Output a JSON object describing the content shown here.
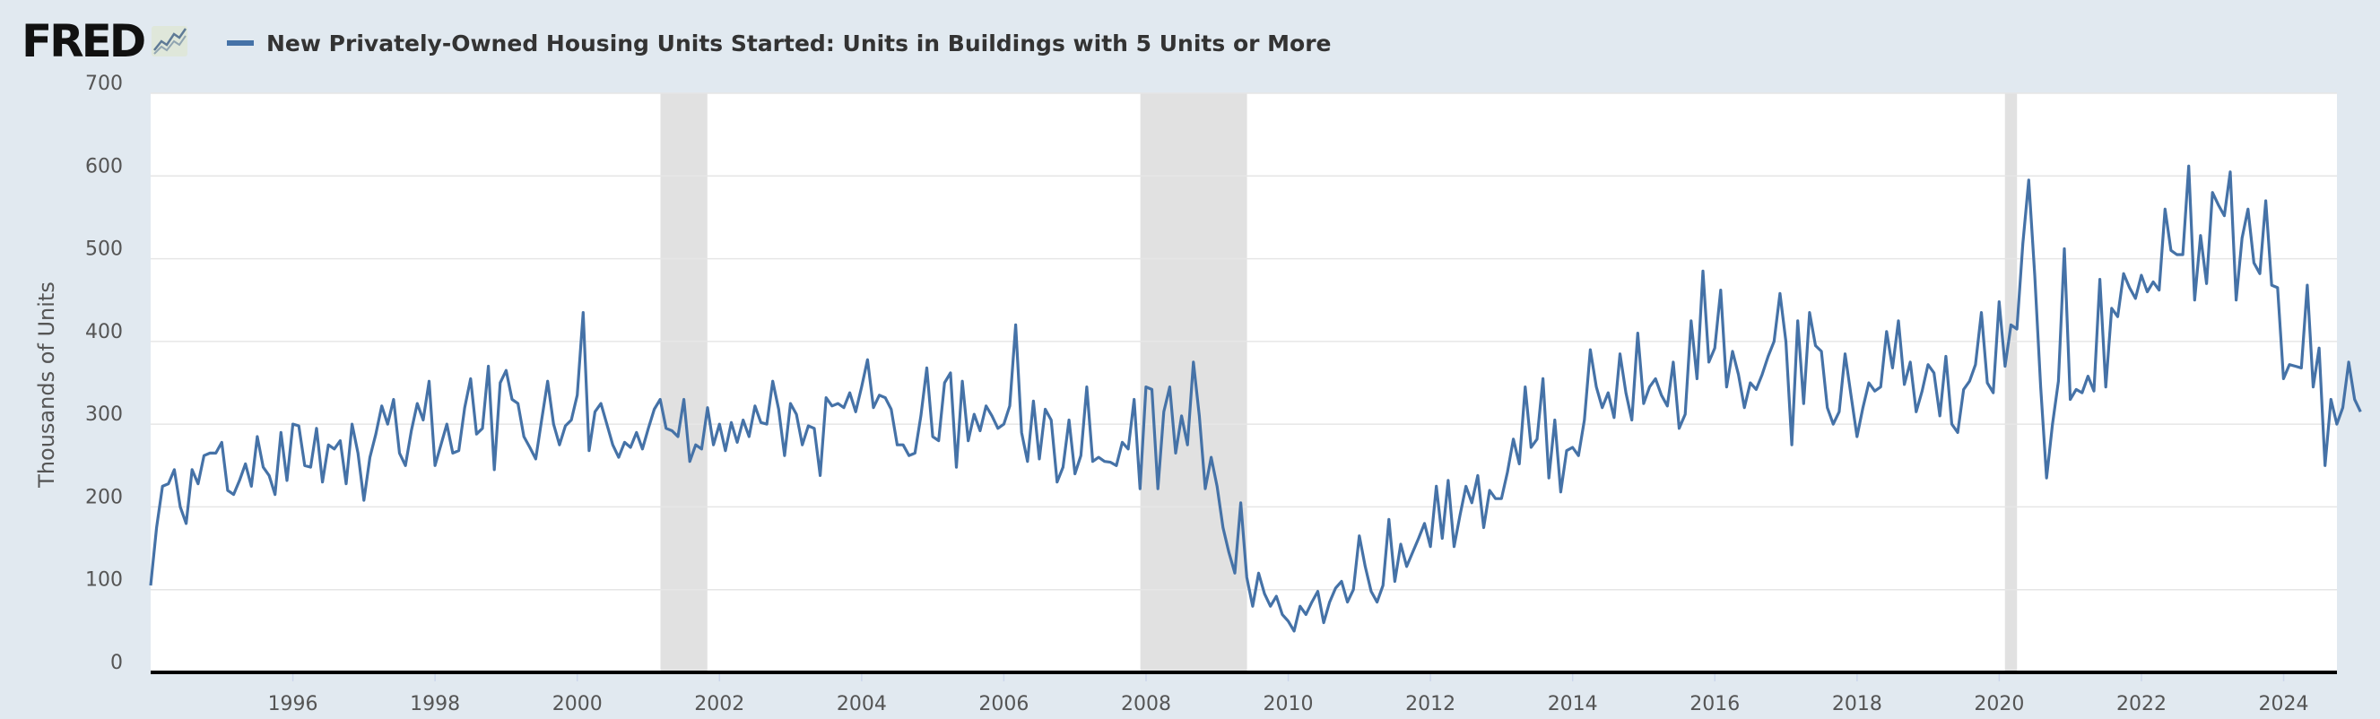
{
  "header": {
    "logo_text": "FRED",
    "series_label": "New Privately-Owned Housing Units Started: Units in Buildings with 5 Units or More"
  },
  "colors": {
    "background": "#e1e9f0",
    "plot_background": "#ffffff",
    "series": "#4572a7",
    "recession": "#e1e1e1",
    "grid": "#e6e6e6",
    "axis": "#000000",
    "logo_graph_bg": "#dfe7da",
    "logo_graph_line": "#5e7a96"
  },
  "chart_data": {
    "type": "line",
    "title": "",
    "xlabel": "",
    "ylabel": "Thousands of Units",
    "ylim": [
      0,
      700
    ],
    "xlim": [
      1994.0,
      2024.75
    ],
    "yticks": [
      0,
      100,
      200,
      300,
      400,
      500,
      600,
      700
    ],
    "xticks": [
      1996,
      1998,
      2000,
      2002,
      2004,
      2006,
      2008,
      2010,
      2012,
      2014,
      2016,
      2018,
      2020,
      2022,
      2024
    ],
    "grid": true,
    "legend": "top-left",
    "recessions": [
      [
        2001.17,
        2001.83
      ],
      [
        2007.92,
        2009.42
      ],
      [
        2020.08,
        2020.25
      ]
    ],
    "series": [
      {
        "name": "New Privately-Owned Housing Units Started: Units in Buildings with 5 Units or More",
        "x_start": 1994.0,
        "x_step": 0.08333,
        "values": [
          105,
          175,
          225,
          228,
          245,
          200,
          180,
          245,
          228,
          262,
          265,
          265,
          278,
          220,
          215,
          232,
          252,
          225,
          285,
          248,
          238,
          215,
          290,
          232,
          300,
          298,
          250,
          248,
          295,
          230,
          275,
          270,
          280,
          228,
          300,
          265,
          208,
          260,
          288,
          322,
          300,
          330,
          265,
          250,
          292,
          325,
          305,
          352,
          250,
          275,
          300,
          265,
          268,
          320,
          355,
          288,
          295,
          370,
          245,
          350,
          365,
          330,
          325,
          285,
          272,
          258,
          305,
          352,
          300,
          275,
          298,
          305,
          335,
          435,
          268,
          315,
          325,
          300,
          275,
          260,
          278,
          272,
          290,
          270,
          295,
          318,
          330,
          295,
          292,
          285,
          330,
          255,
          275,
          270,
          320,
          275,
          300,
          268,
          302,
          278,
          305,
          285,
          322,
          302,
          300,
          352,
          318,
          262,
          325,
          312,
          275,
          298,
          295,
          238,
          332,
          322,
          325,
          320,
          338,
          315,
          345,
          378,
          320,
          335,
          332,
          318,
          275,
          275,
          262,
          265,
          310,
          368,
          285,
          280,
          350,
          362,
          248,
          352,
          280,
          312,
          292,
          322,
          310,
          295,
          300,
          322,
          420,
          290,
          255,
          328,
          258,
          318,
          305,
          230,
          248,
          305,
          240,
          262,
          345,
          255,
          260,
          255,
          254,
          250,
          278,
          270,
          330,
          222,
          345,
          342,
          222,
          315,
          345,
          265,
          310,
          275,
          375,
          310,
          222,
          260,
          225,
          175,
          145,
          120,
          205,
          115,
          80,
          120,
          95,
          80,
          92,
          70,
          62,
          50,
          80,
          70,
          85,
          98,
          60,
          85,
          102,
          110,
          85,
          100,
          165,
          128,
          98,
          85,
          105,
          185,
          110,
          155,
          128,
          145,
          162,
          180,
          152,
          225,
          162,
          232,
          152,
          190,
          225,
          205,
          238,
          175,
          220,
          210,
          210,
          242,
          282,
          252,
          345,
          272,
          282,
          355,
          235,
          305,
          218,
          268,
          272,
          262,
          305,
          390,
          345,
          320,
          338,
          308,
          385,
          338,
          305,
          410,
          325,
          345,
          355,
          335,
          322,
          375,
          295,
          312,
          425,
          355,
          485,
          375,
          392,
          462,
          345,
          388,
          360,
          320,
          350,
          342,
          360,
          382,
          400,
          458,
          400,
          275,
          425,
          325,
          435,
          395,
          388,
          320,
          300,
          315,
          385,
          335,
          285,
          320,
          350,
          340,
          345,
          412,
          368,
          425,
          348,
          375,
          315,
          340,
          372,
          362,
          310,
          382,
          300,
          290,
          342,
          352,
          372,
          435,
          350,
          338,
          448,
          370,
          420,
          415,
          518,
          595,
          480,
          345,
          235,
          300,
          352,
          512,
          330,
          342,
          338,
          358,
          340,
          475,
          345,
          440,
          430,
          482,
          465,
          452,
          480,
          460,
          472,
          462,
          560,
          510,
          505,
          505,
          612,
          450,
          528,
          470,
          580,
          565,
          552,
          605,
          450,
          525,
          560,
          495,
          482,
          570,
          468,
          465,
          355,
          372,
          370,
          368,
          468,
          345,
          392,
          250,
          330,
          300,
          320,
          375,
          330,
          315
        ]
      }
    ]
  }
}
